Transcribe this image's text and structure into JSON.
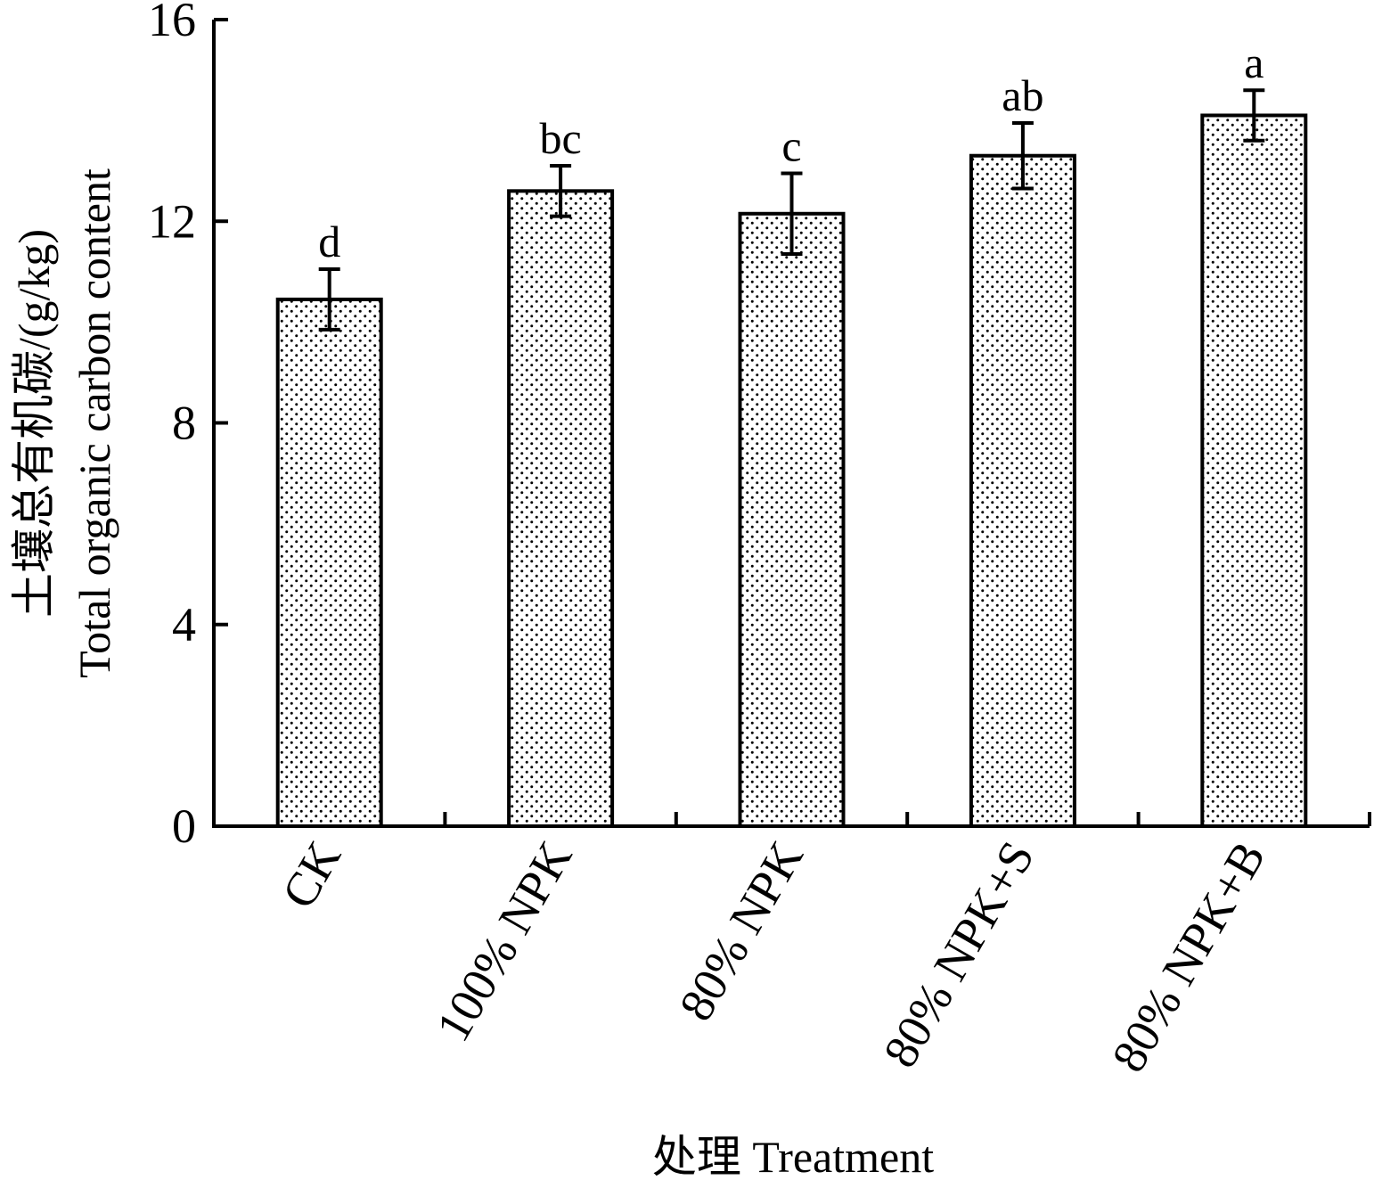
{
  "chart_data": {
    "type": "bar",
    "title": "",
    "xlabel": "处理 Treatment",
    "ylabel": {
      "line1": "土壤总有机碳/(g/kg)",
      "line2": "Total organic carbon content"
    },
    "ylim": [
      0,
      16
    ],
    "yticks": [
      "0",
      "4",
      "8",
      "12",
      "16"
    ],
    "categories": [
      "CK",
      "100% NPK",
      "80% NPK",
      "80% NPK+S",
      "80% NPK+B"
    ],
    "values": [
      10.45,
      12.6,
      12.15,
      13.3,
      14.1
    ],
    "errors": [
      0.6,
      0.5,
      0.8,
      0.65,
      0.5
    ],
    "significance": [
      "d",
      "bc",
      "c",
      "ab",
      "a"
    ],
    "grid": false,
    "legend": "none",
    "bar_fill": "dotted pattern",
    "colors": {
      "axis": "#000000",
      "bar_fill": "#ffffff",
      "dots": "#000000"
    }
  }
}
